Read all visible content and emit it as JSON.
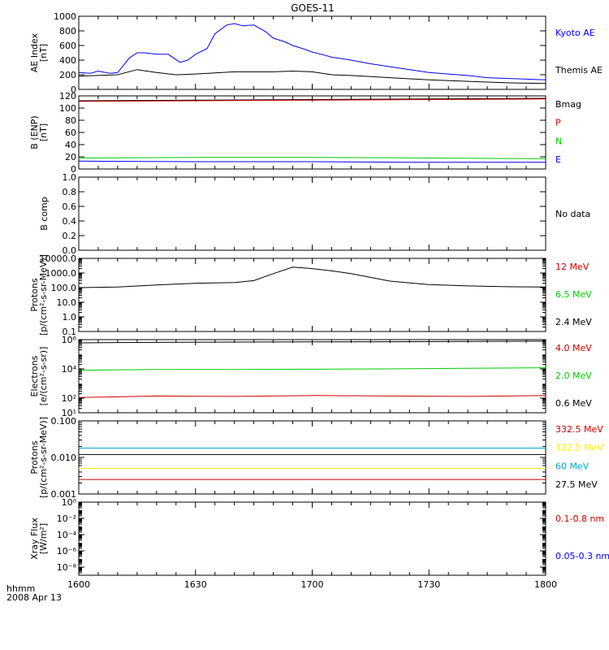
{
  "title": "GOES-11",
  "footer": {
    "label": "hhmm",
    "date": "2008 Apr 13"
  },
  "time_ticks": [
    "1600",
    "1630",
    "1700",
    "1730",
    "1800"
  ],
  "no_data_text": "No data",
  "chart_data": [
    {
      "id": "ae",
      "type": "line",
      "ylabel": [
        "AE Index",
        "[nT]"
      ],
      "ylim": [
        0,
        1000
      ],
      "scale": "linear",
      "ticks": [
        0,
        200,
        400,
        600,
        800,
        1000
      ],
      "tick_labels": [
        "0",
        "200",
        "400",
        "600",
        "800",
        "1000"
      ],
      "series": [
        {
          "name": "Kyoto AE",
          "color": "#0000ee",
          "x": [
            0,
            3,
            5,
            8,
            10,
            13,
            15,
            17,
            20,
            23,
            26,
            28,
            30,
            33,
            35,
            38,
            40,
            42,
            45,
            48,
            50,
            53,
            55,
            58,
            60,
            63,
            65,
            70,
            75,
            80,
            85,
            90,
            95,
            100,
            105,
            110,
            115,
            120
          ],
          "values": [
            230,
            220,
            250,
            220,
            230,
            430,
            500,
            500,
            480,
            480,
            370,
            400,
            480,
            560,
            760,
            880,
            900,
            870,
            880,
            790,
            700,
            650,
            600,
            550,
            510,
            470,
            440,
            400,
            350,
            310,
            270,
            230,
            210,
            190,
            160,
            150,
            140,
            130
          ]
        },
        {
          "name": "Themis AE",
          "color": "#000000",
          "x": [
            0,
            10,
            15,
            20,
            25,
            30,
            40,
            50,
            55,
            60,
            65,
            70,
            80,
            90,
            100,
            110,
            120
          ],
          "values": [
            180,
            200,
            270,
            230,
            200,
            210,
            240,
            240,
            250,
            240,
            200,
            190,
            160,
            130,
            110,
            90,
            80
          ]
        }
      ]
    },
    {
      "id": "bfield",
      "type": "line",
      "ylabel": [
        "B (ENP)",
        "[nT]"
      ],
      "ylim": [
        0,
        120
      ],
      "scale": "linear",
      "ticks": [
        0,
        20,
        40,
        60,
        80,
        100,
        120
      ],
      "tick_labels": [
        "0",
        "20",
        "40",
        "60",
        "80",
        "100",
        "120"
      ],
      "series": [
        {
          "name": "Bmag",
          "color": "#000000",
          "x": [
            0,
            30,
            60,
            90,
            120
          ],
          "values": [
            112,
            113,
            114,
            115,
            116
          ]
        },
        {
          "name": "P",
          "color": "#cc0000",
          "x": [
            0,
            30,
            60,
            90,
            120
          ],
          "values": [
            111,
            112,
            113,
            114,
            115
          ]
        },
        {
          "name": "N",
          "color": "#00cc00",
          "x": [
            0,
            30,
            60,
            90,
            120
          ],
          "values": [
            18,
            19,
            19,
            18,
            17
          ]
        },
        {
          "name": "E",
          "color": "#0000ee",
          "x": [
            0,
            30,
            60,
            90,
            120
          ],
          "values": [
            13,
            12,
            12,
            11,
            11
          ]
        }
      ]
    },
    {
      "id": "bcomp",
      "type": "line",
      "ylabel": [
        "B comp"
      ],
      "ylim": [
        0,
        1
      ],
      "scale": "linear",
      "ticks": [
        0,
        0.2,
        0.4,
        0.6,
        0.8,
        1.0
      ],
      "tick_labels": [
        "0.0",
        "0.2",
        "0.4",
        "0.6",
        "0.8",
        "1.0"
      ],
      "series": []
    },
    {
      "id": "protons",
      "type": "line",
      "ylabel": [
        "Protons",
        "[p/(cm²-s-sr-MeV)]"
      ],
      "ylim": [
        0.1,
        10000
      ],
      "scale": "log",
      "ticks": [
        0.1,
        1,
        10,
        100,
        1000,
        10000
      ],
      "tick_labels": [
        "0.1",
        "1.0",
        "10.0",
        "100.0",
        "1000.0",
        "10000.0"
      ],
      "series": [
        {
          "name": "12 MeV",
          "color": "#cc0000",
          "x": [],
          "values": []
        },
        {
          "name": "6.5 MeV",
          "color": "#00cc00",
          "x": [],
          "values": []
        },
        {
          "name": "2.4 MeV",
          "color": "#000000",
          "x": [
            0,
            10,
            20,
            30,
            40,
            45,
            50,
            55,
            60,
            65,
            70,
            75,
            80,
            90,
            100,
            110,
            120
          ],
          "values": [
            100,
            110,
            150,
            200,
            220,
            300,
            900,
            2500,
            2000,
            1400,
            900,
            500,
            280,
            160,
            130,
            115,
            110
          ]
        }
      ]
    },
    {
      "id": "electrons",
      "type": "line",
      "ylabel": [
        "Electrons",
        "[e/(cm²-s-sr)]"
      ],
      "ylim": [
        10,
        1000000
      ],
      "scale": "log",
      "ticks": [
        10,
        100,
        10000,
        1000000
      ],
      "tick_labels": [
        "10¹",
        "10²",
        "10⁴",
        "10⁶"
      ],
      "series": [
        {
          "name": "4.0 MeV",
          "color": "#cc0000",
          "x": [
            0,
            20,
            40,
            60,
            80,
            100,
            120
          ],
          "values": [
            110,
            140,
            130,
            150,
            140,
            130,
            150
          ]
        },
        {
          "name": "2.0 MeV",
          "color": "#00cc00",
          "x": [
            0,
            20,
            40,
            60,
            80,
            100,
            120
          ],
          "values": [
            8000,
            9000,
            9000,
            9500,
            10000,
            11000,
            12000
          ]
        },
        {
          "name": "0.6 MeV",
          "color": "#000000",
          "x": [
            0,
            20,
            40,
            60,
            80,
            100,
            120
          ],
          "values": [
            600000,
            650000,
            680000,
            700000,
            720000,
            750000,
            780000
          ]
        }
      ]
    },
    {
      "id": "hiprotons",
      "type": "line",
      "ylabel": [
        "Protons",
        "[p/(cm²-s-sr-MeV)]"
      ],
      "ylim": [
        0.001,
        0.1
      ],
      "scale": "log",
      "ticks": [
        0.001,
        0.01,
        0.1
      ],
      "tick_labels": [
        "0.001",
        "0.010",
        "0.100"
      ],
      "series": [
        {
          "name": "332.5 MeV",
          "color": "#cc0000",
          "x": [
            0,
            120
          ],
          "values": [
            0.0025,
            0.0025
          ]
        },
        {
          "name": "122.5 MeV",
          "color": "#ffee00",
          "x": [
            0,
            120
          ],
          "values": [
            0.005,
            0.005
          ]
        },
        {
          "name": "60 MeV",
          "color": "#00aacc",
          "x": [
            0,
            120
          ],
          "values": [
            0.018,
            0.018
          ]
        },
        {
          "name": "27.5 MeV",
          "color": "#000000",
          "x": [
            0,
            120
          ],
          "values": [
            0.012,
            0.012
          ]
        }
      ]
    },
    {
      "id": "xray",
      "type": "line",
      "ylabel": [
        "Xray Flux",
        "[W/m²]"
      ],
      "ylim": [
        1e-09,
        1
      ],
      "scale": "log",
      "ticks": [
        1e-08,
        1e-06,
        0.0001,
        0.01,
        1
      ],
      "tick_labels": [
        "10⁻⁸",
        "10⁻⁶",
        "10⁻⁴",
        "10⁻²",
        "10⁰"
      ],
      "series": [
        {
          "name": "0.1-0.8 nm",
          "color": "#cc0000",
          "x": [],
          "values": []
        },
        {
          "name": "0.05-0.3 nm",
          "color": "#0000ee",
          "x": [],
          "values": []
        }
      ]
    }
  ]
}
